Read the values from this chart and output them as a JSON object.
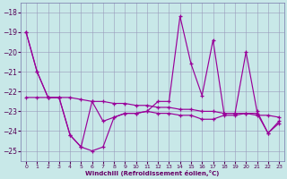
{
  "xlabel": "Windchill (Refroidissement éolien,°C)",
  "xlim": [
    -0.5,
    23.5
  ],
  "ylim": [
    -25.5,
    -17.5
  ],
  "yticks": [
    -25,
    -24,
    -23,
    -22,
    -21,
    -20,
    -19,
    -18
  ],
  "xticks": [
    0,
    1,
    2,
    3,
    4,
    5,
    6,
    7,
    8,
    9,
    10,
    11,
    12,
    13,
    14,
    15,
    16,
    17,
    18,
    19,
    20,
    21,
    22,
    23
  ],
  "bg_color": "#c8e8e8",
  "grid_color": "#9999bb",
  "line_color": "#990099",
  "line1_y": [
    -19.0,
    -21.0,
    -22.3,
    -22.3,
    -24.2,
    -24.8,
    -22.5,
    -23.5,
    -23.3,
    -23.1,
    -23.1,
    -23.0,
    -22.5,
    -22.5,
    -18.2,
    -20.6,
    -22.2,
    -19.4,
    -23.1,
    -23.1,
    -20.0,
    -23.0,
    -24.1,
    -23.5
  ],
  "line2_y": [
    -19.0,
    -21.0,
    -22.3,
    -22.3,
    -24.2,
    -24.8,
    -25.0,
    -24.8,
    -23.3,
    -23.1,
    -23.1,
    -23.0,
    -23.1,
    -23.1,
    -23.2,
    -23.2,
    -23.4,
    -23.4,
    -23.2,
    -23.2,
    -23.1,
    -23.1,
    -24.1,
    -23.6
  ],
  "line3_y": [
    -22.3,
    -22.3,
    -22.3,
    -22.3,
    -22.3,
    -22.4,
    -22.5,
    -22.5,
    -22.6,
    -22.6,
    -22.7,
    -22.7,
    -22.8,
    -22.8,
    -22.9,
    -22.9,
    -23.0,
    -23.0,
    -23.1,
    -23.1,
    -23.1,
    -23.2,
    -23.2,
    -23.3
  ]
}
